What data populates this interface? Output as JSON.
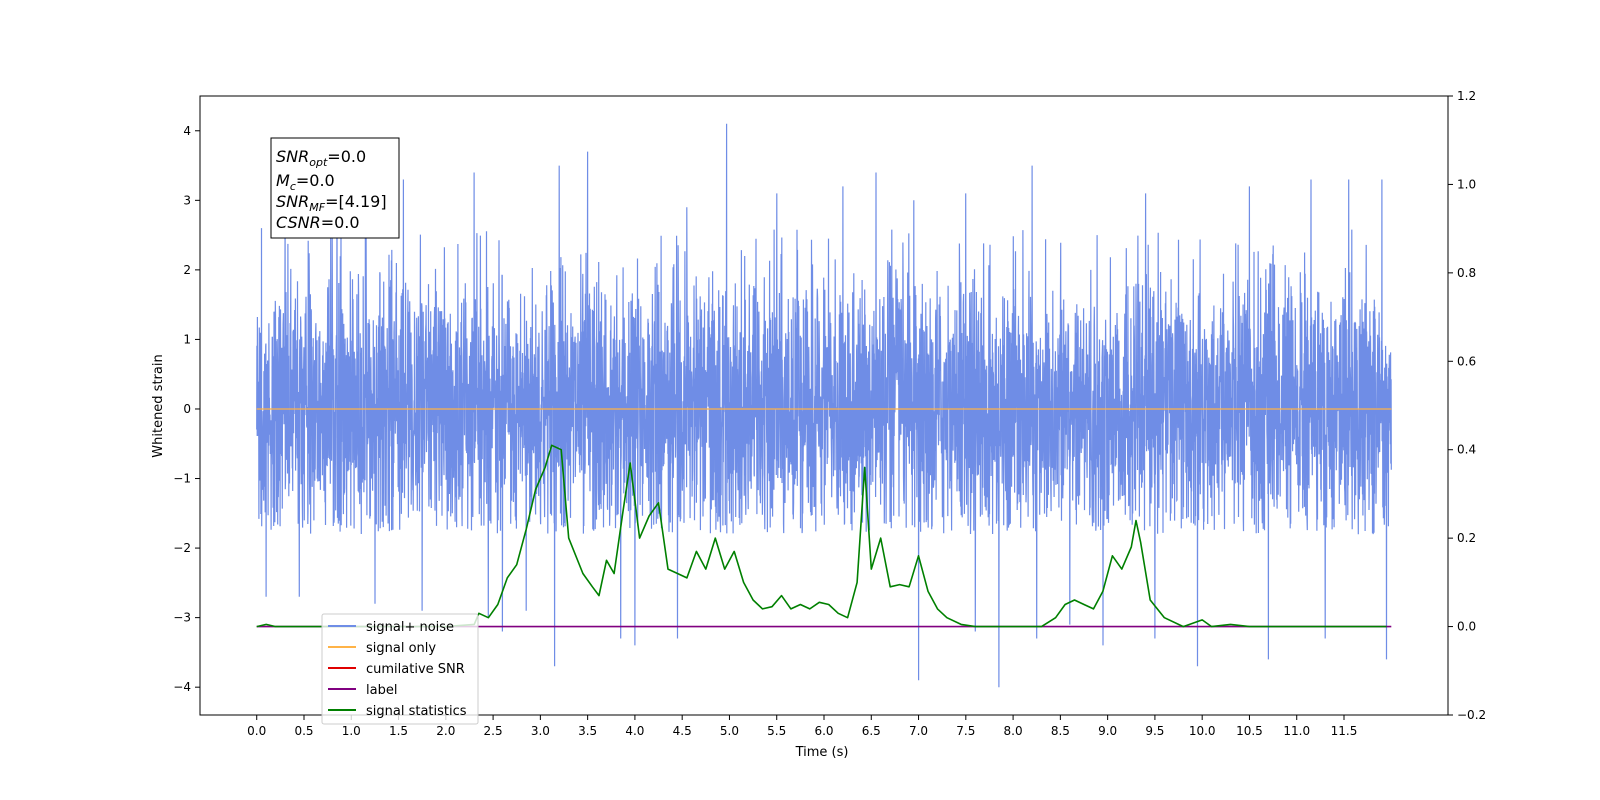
{
  "chart_data": {
    "type": "line",
    "xlabel": "Time (s)",
    "ylabel": "Whitened strain",
    "xlim": [
      -0.6,
      12.6
    ],
    "ylim": [
      -4.4,
      4.5
    ],
    "y2lim": [
      -0.2,
      1.2
    ],
    "x_ticks": [
      0.0,
      0.5,
      1.0,
      1.5,
      2.0,
      2.5,
      3.0,
      3.5,
      4.0,
      4.5,
      5.0,
      5.5,
      6.0,
      6.5,
      7.0,
      7.5,
      8.0,
      8.5,
      9.0,
      9.5,
      10.0,
      10.5,
      11.0,
      11.5
    ],
    "x_tick_labels": [
      "0.0",
      "0.5",
      "1.0",
      "1.5",
      "2.0",
      "2.5",
      "3.0",
      "3.5",
      "4.0",
      "4.5",
      "5.0",
      "5.5",
      "6.0",
      "6.5",
      "7.0",
      "7.5",
      "8.0",
      "8.5",
      "9.0",
      "9.5",
      "10.0",
      "10.5",
      "11.0",
      "11.5"
    ],
    "y_ticks": [
      -4,
      -3,
      -2,
      -1,
      0,
      1,
      2,
      3,
      4
    ],
    "y_tick_labels": [
      "−4",
      "−3",
      "−2",
      "−1",
      "0",
      "1",
      "2",
      "3",
      "4"
    ],
    "y2_ticks": [
      -0.2,
      0.0,
      0.2,
      0.4,
      0.6,
      0.8,
      1.0,
      1.2
    ],
    "y2_tick_labels": [
      "−0.2",
      "0.0",
      "0.2",
      "0.4",
      "0.6",
      "0.8",
      "1.0",
      "1.2"
    ],
    "grid": false,
    "legend_position": "lower-left",
    "annotation": {
      "lines": [
        {
          "base": "SNR",
          "sub": "opt",
          "value": "=0.0"
        },
        {
          "base": "M",
          "sub": "c",
          "value": "=0.0"
        },
        {
          "base": "SNR",
          "sub": "MF",
          "value": "=[4.19]"
        },
        {
          "base": "CSNR",
          "sub": "",
          "value": "=0.0"
        }
      ]
    },
    "series": [
      {
        "name": "signal+ noise",
        "color": "#6f8de6",
        "axis": "left",
        "kind": "noise",
        "x_range": [
          0.0,
          12.0
        ],
        "typical_envelope": [
          -1.8,
          2.6
        ],
        "spikes": [
          {
            "x": 0.05,
            "y": 2.6
          },
          {
            "x": 0.1,
            "y": -2.7
          },
          {
            "x": 0.3,
            "y": 2.9
          },
          {
            "x": 0.45,
            "y": -2.7
          },
          {
            "x": 0.85,
            "y": 3.1
          },
          {
            "x": 1.15,
            "y": 3.2
          },
          {
            "x": 1.25,
            "y": -2.8
          },
          {
            "x": 1.55,
            "y": 3.3
          },
          {
            "x": 1.75,
            "y": -2.9
          },
          {
            "x": 2.3,
            "y": 3.4
          },
          {
            "x": 2.45,
            "y": -3.0
          },
          {
            "x": 2.6,
            "y": -3.2
          },
          {
            "x": 2.85,
            "y": -2.9
          },
          {
            "x": 3.2,
            "y": 3.5
          },
          {
            "x": 3.15,
            "y": -3.7
          },
          {
            "x": 3.5,
            "y": 3.7
          },
          {
            "x": 3.85,
            "y": -3.3
          },
          {
            "x": 4.0,
            "y": -3.4
          },
          {
            "x": 4.45,
            "y": -3.3
          },
          {
            "x": 4.55,
            "y": 2.9
          },
          {
            "x": 4.97,
            "y": 4.1
          },
          {
            "x": 5.5,
            "y": 3.1
          },
          {
            "x": 6.2,
            "y": 3.2
          },
          {
            "x": 6.55,
            "y": 3.4
          },
          {
            "x": 6.95,
            "y": 3.0
          },
          {
            "x": 7.0,
            "y": -3.9
          },
          {
            "x": 7.5,
            "y": 3.1
          },
          {
            "x": 7.6,
            "y": -3.2
          },
          {
            "x": 7.85,
            "y": -4.0
          },
          {
            "x": 8.2,
            "y": 3.5
          },
          {
            "x": 8.25,
            "y": -3.3
          },
          {
            "x": 8.6,
            "y": -3.1
          },
          {
            "x": 8.95,
            "y": -3.4
          },
          {
            "x": 9.4,
            "y": 3.1
          },
          {
            "x": 9.5,
            "y": -3.3
          },
          {
            "x": 9.95,
            "y": -3.7
          },
          {
            "x": 10.5,
            "y": 3.2
          },
          {
            "x": 10.7,
            "y": -3.6
          },
          {
            "x": 11.15,
            "y": 3.3
          },
          {
            "x": 11.3,
            "y": -3.3
          },
          {
            "x": 11.55,
            "y": 3.3
          },
          {
            "x": 11.9,
            "y": 3.3
          },
          {
            "x": 11.95,
            "y": -3.6
          }
        ]
      },
      {
        "name": "signal only",
        "color": "#ffb347",
        "axis": "left",
        "x": [
          0.0,
          12.0
        ],
        "y": [
          0.0,
          0.0
        ]
      },
      {
        "name": "cumilative SNR",
        "color": "#e00000",
        "axis": "right",
        "x": [],
        "y": []
      },
      {
        "name": "label",
        "color": "#800080",
        "axis": "right",
        "x": [
          0.0,
          12.0
        ],
        "y": [
          0.0,
          0.0
        ]
      },
      {
        "name": "signal statistics",
        "color": "#008000",
        "axis": "right",
        "x": [
          0.0,
          0.1,
          0.2,
          1.0,
          2.0,
          2.3,
          2.35,
          2.45,
          2.55,
          2.65,
          2.75,
          2.85,
          2.95,
          3.05,
          3.12,
          3.22,
          3.3,
          3.45,
          3.55,
          3.62,
          3.7,
          3.78,
          3.88,
          3.95,
          4.05,
          4.15,
          4.25,
          4.35,
          4.45,
          4.55,
          4.65,
          4.75,
          4.85,
          4.95,
          5.05,
          5.15,
          5.25,
          5.35,
          5.45,
          5.55,
          5.65,
          5.75,
          5.85,
          5.95,
          6.05,
          6.15,
          6.25,
          6.35,
          6.43,
          6.5,
          6.6,
          6.7,
          6.8,
          6.9,
          7.0,
          7.1,
          7.2,
          7.3,
          7.45,
          7.6,
          8.0,
          8.3,
          8.45,
          8.55,
          8.65,
          8.75,
          8.85,
          8.95,
          9.05,
          9.15,
          9.25,
          9.3,
          9.35,
          9.45,
          9.6,
          9.8,
          10.0,
          10.1,
          10.3,
          10.5,
          11.0,
          11.95
        ],
        "y": [
          0.0,
          0.005,
          0.0,
          0.0,
          0.0,
          0.005,
          0.03,
          0.02,
          0.05,
          0.11,
          0.14,
          0.22,
          0.31,
          0.36,
          0.41,
          0.4,
          0.2,
          0.12,
          0.09,
          0.07,
          0.15,
          0.12,
          0.27,
          0.37,
          0.2,
          0.25,
          0.28,
          0.13,
          0.12,
          0.11,
          0.17,
          0.13,
          0.2,
          0.13,
          0.17,
          0.1,
          0.06,
          0.04,
          0.045,
          0.07,
          0.04,
          0.05,
          0.04,
          0.055,
          0.05,
          0.03,
          0.02,
          0.1,
          0.36,
          0.13,
          0.2,
          0.09,
          0.095,
          0.09,
          0.16,
          0.08,
          0.04,
          0.02,
          0.005,
          0.0,
          0.0,
          0.0,
          0.02,
          0.05,
          0.06,
          0.05,
          0.04,
          0.08,
          0.16,
          0.13,
          0.18,
          0.24,
          0.19,
          0.06,
          0.02,
          0.0,
          0.015,
          0.0,
          0.005,
          0.0,
          0.0,
          0.0
        ]
      }
    ]
  }
}
